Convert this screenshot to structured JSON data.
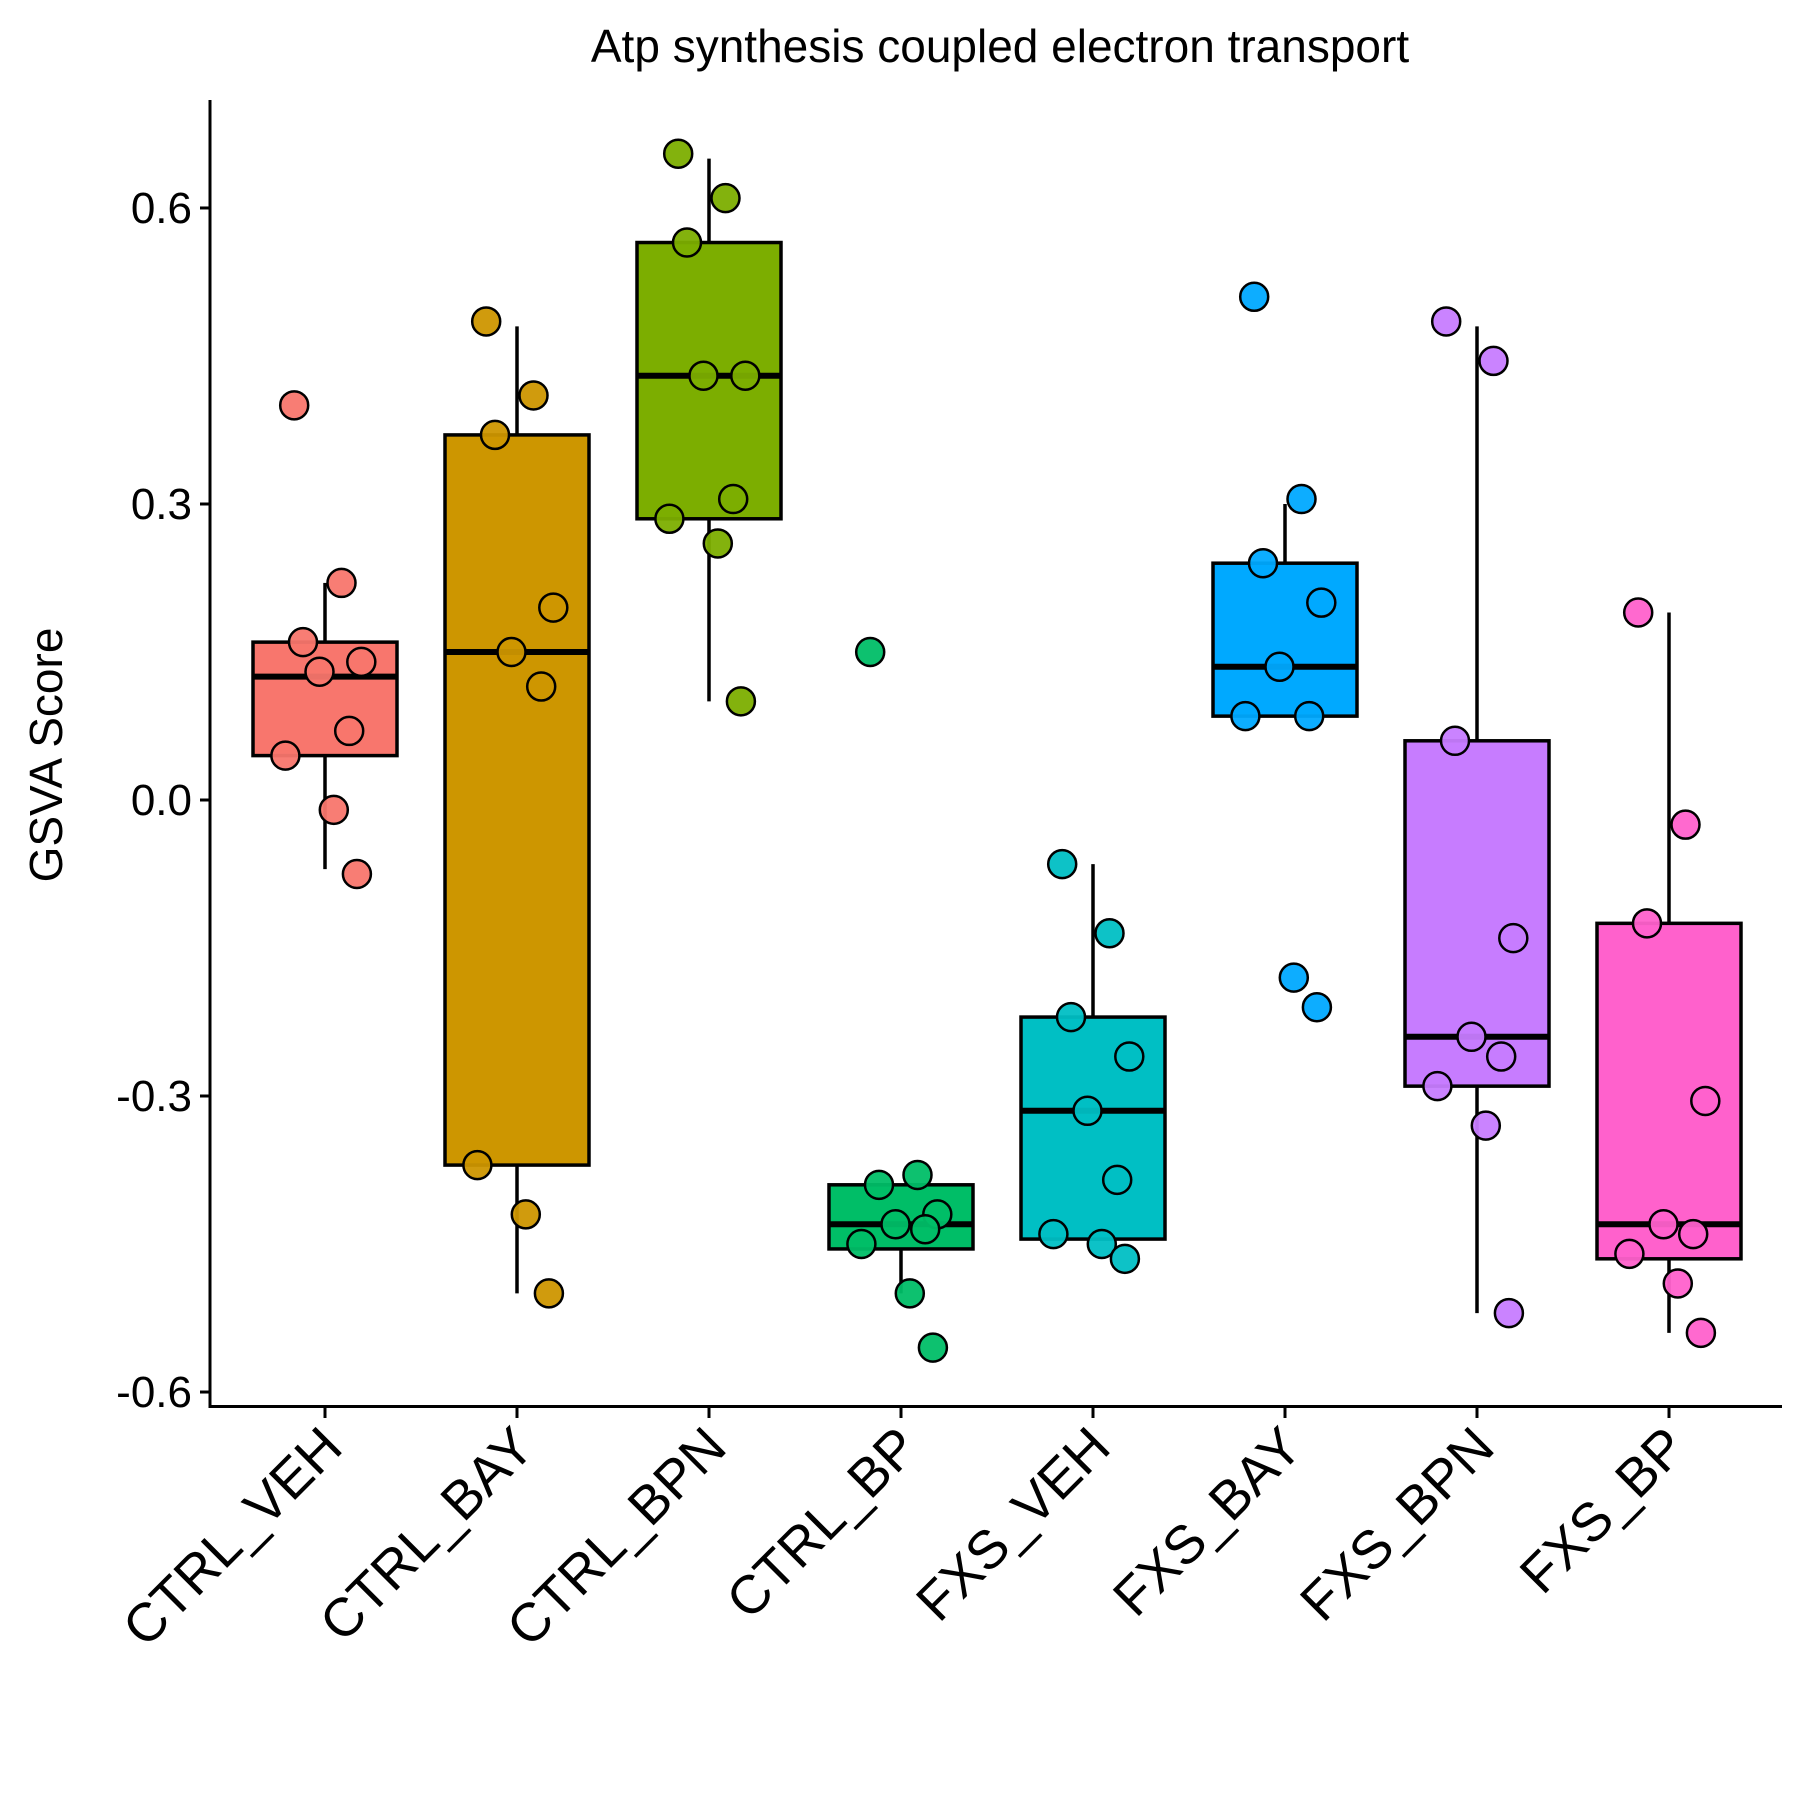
{
  "chart_data": {
    "type": "box",
    "title": "Atp synthesis coupled electron transport",
    "xlabel": "",
    "ylabel": "GSVA Score",
    "ylim": [
      -0.6,
      0.7
    ],
    "yticks": [
      "0.6",
      "0.3",
      "0.0",
      "-0.3",
      "-0.6"
    ],
    "ytick_values": [
      0.6,
      0.3,
      0.0,
      -0.3,
      -0.6
    ],
    "grid": false,
    "legend": "none",
    "groups": [
      {
        "name": "CTRL_VEH",
        "color": "#F8766D",
        "box": {
          "whisker_low": -0.07,
          "q1": 0.045,
          "median": 0.125,
          "q3": 0.16,
          "whisker_high": 0.22
        },
        "points": [
          0.4,
          0.22,
          0.16,
          0.14,
          0.13,
          0.07,
          0.045,
          -0.01,
          -0.075
        ]
      },
      {
        "name": "CTRL_BAY",
        "color": "#CD9600",
        "box": {
          "whisker_low": -0.5,
          "q1": -0.37,
          "median": 0.15,
          "q3": 0.37,
          "whisker_high": 0.48
        },
        "points": [
          0.485,
          0.41,
          0.37,
          0.195,
          0.15,
          0.115,
          -0.37,
          -0.42,
          -0.5
        ]
      },
      {
        "name": "CTRL_BPN",
        "color": "#7CAE00",
        "box": {
          "whisker_low": 0.1,
          "q1": 0.285,
          "median": 0.43,
          "q3": 0.565,
          "whisker_high": 0.65
        },
        "points": [
          0.655,
          0.61,
          0.565,
          0.43,
          0.43,
          0.305,
          0.285,
          0.26,
          0.1
        ]
      },
      {
        "name": "CTRL_BP",
        "color": "#00BE67",
        "box": {
          "whisker_low": -0.5,
          "q1": -0.455,
          "median": -0.43,
          "q3": -0.39,
          "whisker_high": -0.39
        },
        "points": [
          0.15,
          -0.38,
          -0.39,
          -0.42,
          -0.43,
          -0.435,
          -0.45,
          -0.5,
          -0.555
        ]
      },
      {
        "name": "FXS_VEH",
        "color": "#00BFC4",
        "box": {
          "whisker_low": -0.445,
          "q1": -0.445,
          "median": -0.315,
          "q3": -0.22,
          "whisker_high": -0.065
        },
        "points": [
          -0.065,
          -0.135,
          -0.22,
          -0.26,
          -0.315,
          -0.385,
          -0.44,
          -0.45,
          -0.465
        ]
      },
      {
        "name": "FXS_BAY",
        "color": "#00A9FF",
        "box": {
          "whisker_low": 0.085,
          "q1": 0.085,
          "median": 0.135,
          "q3": 0.24,
          "whisker_high": 0.3
        },
        "points": [
          0.51,
          0.305,
          0.24,
          0.2,
          0.135,
          0.085,
          0.085,
          -0.18,
          -0.21
        ]
      },
      {
        "name": "FXS_BPN",
        "color": "#C77CFF",
        "box": {
          "whisker_low": -0.52,
          "q1": -0.29,
          "median": -0.24,
          "q3": 0.06,
          "whisker_high": 0.48
        },
        "points": [
          0.485,
          0.445,
          0.06,
          -0.14,
          -0.24,
          -0.26,
          -0.29,
          -0.33,
          -0.52
        ]
      },
      {
        "name": "FXS_BP",
        "color": "#FF61CC",
        "box": {
          "whisker_low": -0.54,
          "q1": -0.465,
          "median": -0.43,
          "q3": -0.125,
          "whisker_high": 0.19
        },
        "points": [
          0.19,
          -0.025,
          -0.125,
          -0.305,
          -0.43,
          -0.44,
          -0.46,
          -0.49,
          -0.54
        ]
      }
    ]
  }
}
